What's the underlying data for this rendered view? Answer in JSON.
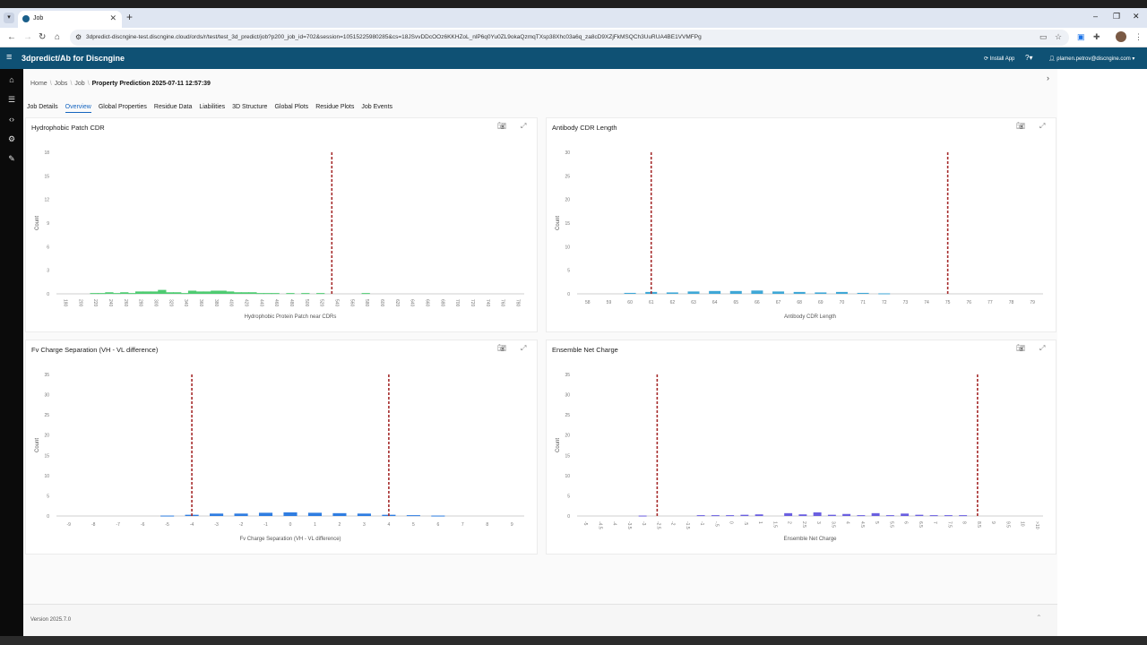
{
  "browser": {
    "tab_title": "Job",
    "url": "3dpredict-discngine-test.discngine.cloud/ords/r/test/test_3d_predict/job?p200_job_id=702&session=10515225980285&cs=18JSvvDDcOOz6KKHZoL_nlP6q0Yu0ZL9okaQzmqTXsp38Xhc03a6q_za8cD9XZjFkMSQCh3UuRUA4BE1VVMFPg"
  },
  "app": {
    "title": "3dpredict/Ab for Discngine",
    "install_label": "Install App",
    "user": "plamen.petrov@discngine.com"
  },
  "breadcrumb": {
    "home": "Home",
    "jobs": "Jobs",
    "job": "Job",
    "current": "Property Prediction 2025-07-11 12:57:39"
  },
  "tabs": [
    "Job Details",
    "Overview",
    "Global Properties",
    "Residue Data",
    "Liabilities",
    "3D Structure",
    "Global Plots",
    "Residue Plots",
    "Job Events"
  ],
  "footer": {
    "version": "Version 2025.7.0"
  },
  "chart_data": [
    {
      "type": "bar",
      "title": "Hydrophobic Patch CDR",
      "xlabel": "Hydrophobic Protein Patch near CDRs",
      "ylabel": "Count",
      "ylim": [
        0,
        18
      ],
      "yticks": [
        0,
        3,
        6,
        9,
        12,
        15,
        18
      ],
      "xticks": [
        "180",
        "200",
        "220",
        "240",
        "260",
        "280",
        "300",
        "320",
        "340",
        "360",
        "380",
        "400",
        "420",
        "440",
        "460",
        "480",
        "500",
        "520",
        "540",
        "560",
        "580",
        "600",
        "620",
        "640",
        "660",
        "680",
        "700",
        "720",
        "740",
        "760",
        "780"
      ],
      "color": "#4ecb71",
      "bars": [
        {
          "x": "220",
          "value": 0.1
        },
        {
          "x": "230",
          "value": 0.1
        },
        {
          "x": "240",
          "value": 0.2
        },
        {
          "x": "250",
          "value": 0.1
        },
        {
          "x": "260",
          "value": 0.2
        },
        {
          "x": "270",
          "value": 0.1
        },
        {
          "x": "280",
          "value": 0.3
        },
        {
          "x": "290",
          "value": 0.3
        },
        {
          "x": "300",
          "value": 0.3
        },
        {
          "x": "310",
          "value": 0.5
        },
        {
          "x": "320",
          "value": 0.2
        },
        {
          "x": "330",
          "value": 0.2
        },
        {
          "x": "340",
          "value": 0.1
        },
        {
          "x": "350",
          "value": 0.4
        },
        {
          "x": "360",
          "value": 0.3
        },
        {
          "x": "370",
          "value": 0.3
        },
        {
          "x": "380",
          "value": 0.4
        },
        {
          "x": "390",
          "value": 0.4
        },
        {
          "x": "400",
          "value": 0.3
        },
        {
          "x": "410",
          "value": 0.2
        },
        {
          "x": "420",
          "value": 0.2
        },
        {
          "x": "430",
          "value": 0.2
        },
        {
          "x": "440",
          "value": 0.1
        },
        {
          "x": "450",
          "value": 0.1
        },
        {
          "x": "460",
          "value": 0.1
        },
        {
          "x": "480",
          "value": 0.1
        },
        {
          "x": "500",
          "value": 0.1
        },
        {
          "x": "520",
          "value": 0.1
        },
        {
          "x": "580",
          "value": 0.1
        }
      ],
      "thresholds": [
        535
      ]
    },
    {
      "type": "bar",
      "title": "Antibody CDR Length",
      "xlabel": "Antibody CDR Length",
      "ylabel": "Count",
      "ylim": [
        0,
        30
      ],
      "yticks": [
        0,
        5,
        10,
        15,
        20,
        25,
        30
      ],
      "xticks": [
        "58",
        "59",
        "60",
        "61",
        "62",
        "63",
        "64",
        "65",
        "66",
        "67",
        "68",
        "69",
        "70",
        "71",
        "72",
        "73",
        "74",
        "75",
        "76",
        "77",
        "78",
        "79"
      ],
      "color": "#3fa7d6",
      "bars": [
        {
          "x": "60",
          "value": 0.2
        },
        {
          "x": "61",
          "value": 0.4
        },
        {
          "x": "62",
          "value": 0.3
        },
        {
          "x": "63",
          "value": 0.5
        },
        {
          "x": "64",
          "value": 0.6
        },
        {
          "x": "65",
          "value": 0.6
        },
        {
          "x": "66",
          "value": 0.7
        },
        {
          "x": "67",
          "value": 0.5
        },
        {
          "x": "68",
          "value": 0.4
        },
        {
          "x": "69",
          "value": 0.3
        },
        {
          "x": "70",
          "value": 0.4
        },
        {
          "x": "71",
          "value": 0.2
        },
        {
          "x": "72",
          "value": 0.1
        }
      ],
      "thresholds": [
        61,
        75
      ]
    },
    {
      "type": "bar",
      "title": "Fv Charge Separation (VH - VL difference)",
      "xlabel": "Fv Charge Separation (VH - VL difference)",
      "ylabel": "Count",
      "ylim": [
        0,
        35
      ],
      "yticks": [
        0,
        5,
        10,
        15,
        20,
        25,
        30,
        35
      ],
      "xticks": [
        "-9",
        "-8",
        "-7",
        "-6",
        "-5",
        "-4",
        "-3",
        "-2",
        "-1",
        "0",
        "1",
        "2",
        "3",
        "4",
        "5",
        "6",
        "7",
        "8",
        "9"
      ],
      "color": "#2f7de1",
      "bars": [
        {
          "x": "-5",
          "value": 0.1
        },
        {
          "x": "-4",
          "value": 0.3
        },
        {
          "x": "-3",
          "value": 0.6
        },
        {
          "x": "-2",
          "value": 0.6
        },
        {
          "x": "-1",
          "value": 0.8
        },
        {
          "x": "0",
          "value": 0.9
        },
        {
          "x": "1",
          "value": 0.8
        },
        {
          "x": "2",
          "value": 0.7
        },
        {
          "x": "3",
          "value": 0.6
        },
        {
          "x": "4",
          "value": 0.3
        },
        {
          "x": "5",
          "value": 0.2
        },
        {
          "x": "6",
          "value": 0.1
        }
      ],
      "thresholds": [
        -4,
        4
      ]
    },
    {
      "type": "bar",
      "title": "Ensemble Net Charge",
      "xlabel": "Ensemble Net Charge",
      "ylabel": "Count",
      "ylim": [
        0,
        35
      ],
      "yticks": [
        0,
        5,
        10,
        15,
        20,
        25,
        30,
        35
      ],
      "xticks": [
        "-5",
        "-4.5",
        "-4",
        "-3.5",
        "-3",
        "-2.5",
        "-2",
        "-1.5",
        "-1",
        "-.5",
        "0",
        ".5",
        "1",
        "1.5",
        "2",
        "2.5",
        "3",
        "3.5",
        "4",
        "4.5",
        "5",
        "5.5",
        "6",
        "6.5",
        "7",
        "7.5",
        "8",
        "8.5",
        "9",
        "9.5",
        "10",
        ">10"
      ],
      "color": "#6a5fe0",
      "bars": [
        {
          "x": "-3",
          "value": 0.1
        },
        {
          "x": "-1",
          "value": 0.2
        },
        {
          "x": "-.5",
          "value": 0.2
        },
        {
          "x": "0",
          "value": 0.2
        },
        {
          "x": ".5",
          "value": 0.3
        },
        {
          "x": "1",
          "value": 0.4
        },
        {
          "x": "2",
          "value": 0.7
        },
        {
          "x": "2.5",
          "value": 0.4
        },
        {
          "x": "3",
          "value": 0.9
        },
        {
          "x": "3.5",
          "value": 0.3
        },
        {
          "x": "4",
          "value": 0.5
        },
        {
          "x": "4.5",
          "value": 0.2
        },
        {
          "x": "5",
          "value": 0.7
        },
        {
          "x": "5.5",
          "value": 0.2
        },
        {
          "x": "6",
          "value": 0.6
        },
        {
          "x": "6.5",
          "value": 0.3
        },
        {
          "x": "7",
          "value": 0.2
        },
        {
          "x": "7.5",
          "value": 0.2
        },
        {
          "x": "8",
          "value": 0.2
        }
      ],
      "thresholds": [
        -2.5,
        8.5
      ]
    }
  ]
}
